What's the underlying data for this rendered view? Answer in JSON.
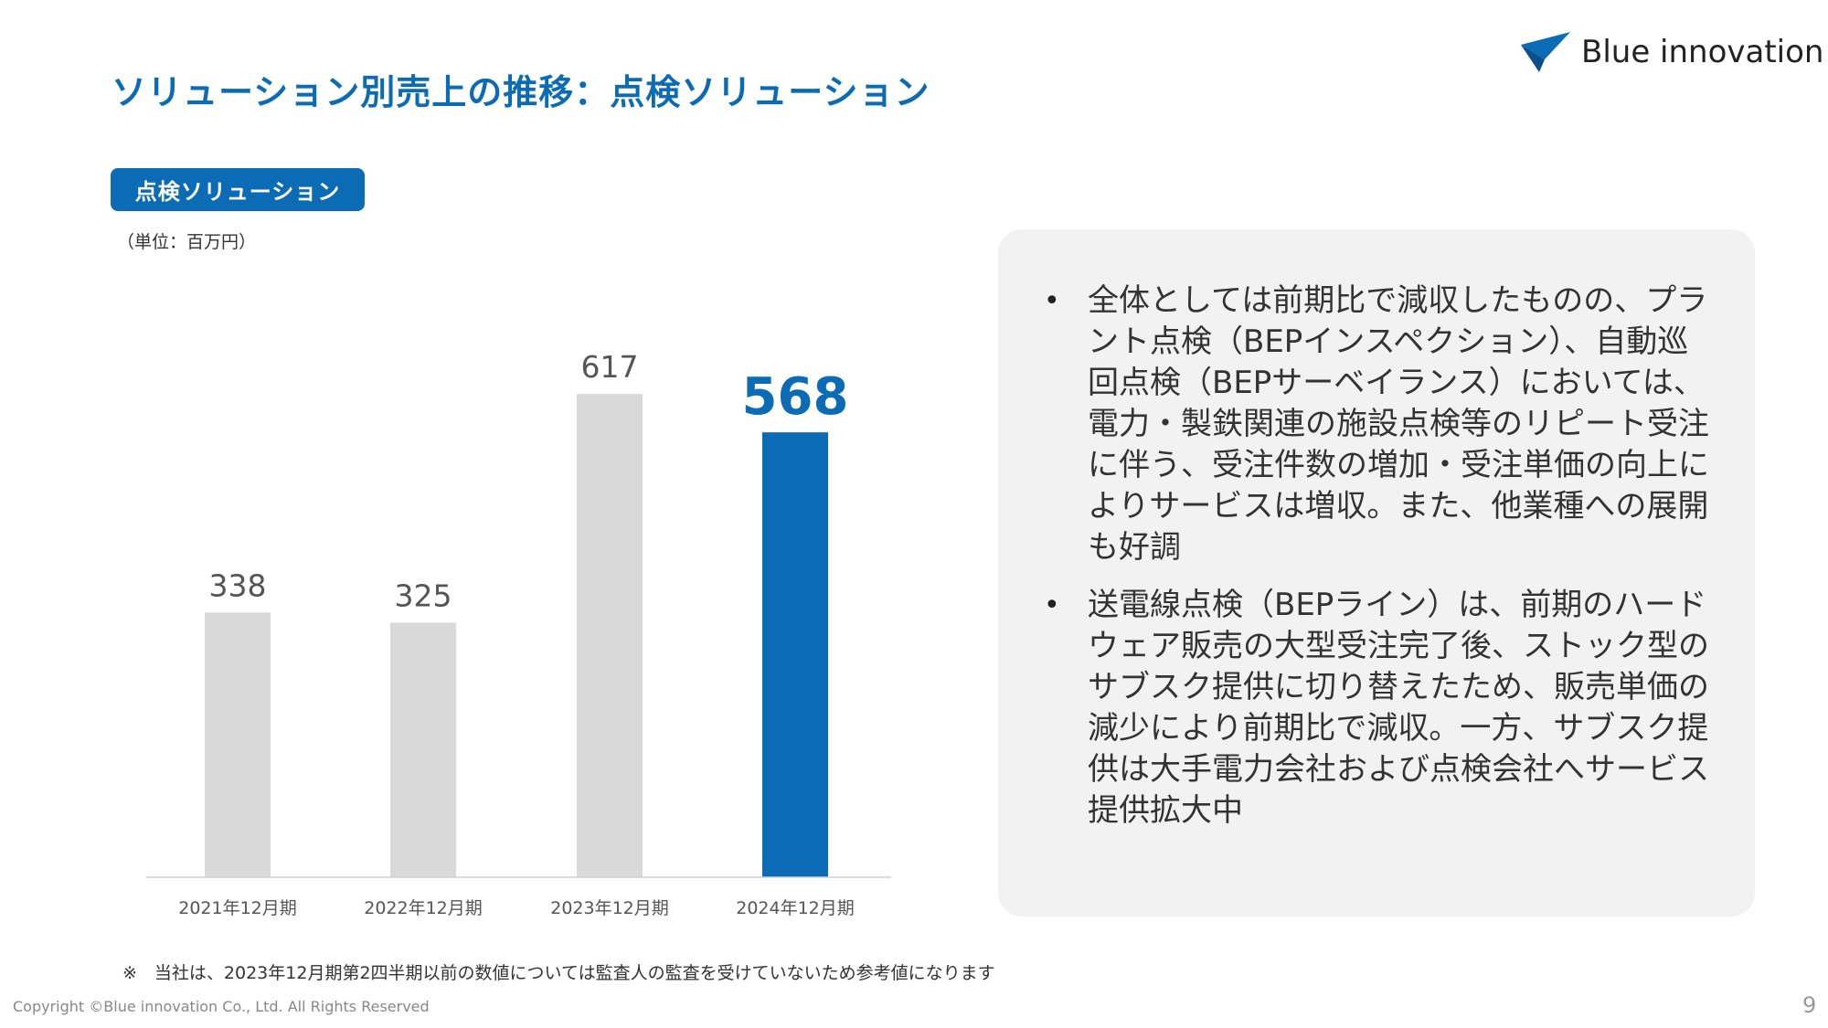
{
  "header": {
    "title": "ソリューション別売上の推移：点検ソリューション",
    "logo_text": "Blue innovation"
  },
  "section_label": "点検ソリューション",
  "unit_label": "（単位：百万円）",
  "chart_data": {
    "type": "bar",
    "categories": [
      "2021年12月期",
      "2022年12月期",
      "2023年12月期",
      "2024年12月期"
    ],
    "values": [
      338,
      325,
      617,
      568
    ],
    "data_labels": [
      "338",
      "325",
      "617",
      "568"
    ],
    "highlight_index": 3,
    "colors": {
      "default": "#D9D9D9",
      "highlight": "#0B6CB5"
    },
    "ylim": [
      0,
      700
    ],
    "grid": false,
    "legend": "none",
    "title": "",
    "xlabel": "",
    "ylabel": ""
  },
  "panel": {
    "bullets": [
      "全体としては前期比で減収したものの、プラント点検（BEPインスペクション）、自動巡回点検（BEPサーベイランス）においては、電力・製鉄関連の施設点検等のリピート受注に伴う、受注件数の増加・受注単価の向上によりサービスは増収。また、他業種への展開も好調",
      "送電線点検（BEPライン）は、前期のハードウェア販売の大型受注完了後、ストック型のサブスク提供に切り替えたため、販売単価の減少により前期比で減収。一方、サブスク提供は大手電力会社および点検会社へサービス提供拡大中"
    ]
  },
  "footer": {
    "note": "※　当社は、2023年12月期第2四半期以前の数値については監査人の監査を受けていないため参考値になります",
    "copyright": "Copyright ©Blue innovation Co., Ltd. All Rights Reserved",
    "page_number": "9"
  }
}
